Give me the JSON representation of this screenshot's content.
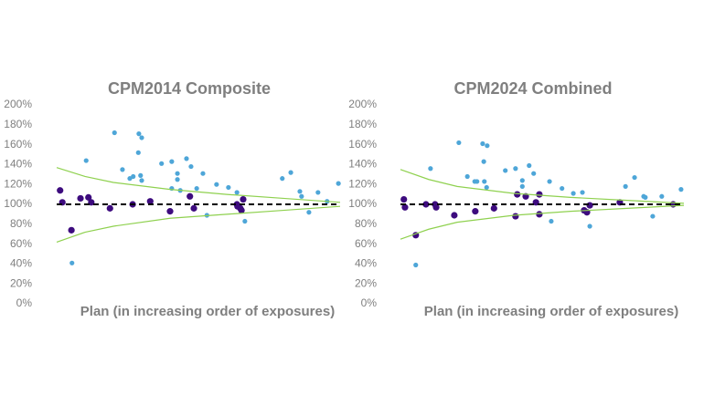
{
  "chart_data": [
    {
      "type": "scatter",
      "title": "CPM2014 Composite",
      "x_label": "Plan (in increasing order of exposures)",
      "xlim": [
        0,
        50
      ],
      "ylim": [
        0,
        200
      ],
      "yticks": [
        {
          "value": 0,
          "label": "0%"
        },
        {
          "value": 20,
          "label": "20%"
        },
        {
          "value": 40,
          "label": "40%"
        },
        {
          "value": 60,
          "label": "60%"
        },
        {
          "value": 80,
          "label": "80%"
        },
        {
          "value": 100,
          "label": "100%"
        },
        {
          "value": 120,
          "label": "120%"
        },
        {
          "value": 140,
          "label": "140%"
        },
        {
          "value": 160,
          "label": "160%"
        },
        {
          "value": 180,
          "label": "180%"
        },
        {
          "value": 200,
          "label": "200%"
        }
      ],
      "series": [
        {
          "kind": "markers",
          "color": "#4ea6d8",
          "marker_size": 2.6,
          "x": [
            2.7,
            5.2,
            10.2,
            11.6,
            12.9,
            13.5,
            14.5,
            14.4,
            15.0,
            14.8,
            15.0,
            18.5,
            20.3,
            20.3,
            21.3,
            21.3,
            21.8,
            22.9,
            23.7,
            24.7,
            25.8,
            26.5,
            28.2,
            30.3,
            31.8,
            33.2,
            39.8,
            41.3,
            42.9,
            43.2,
            44.5,
            46.1,
            47.7,
            49.7
          ],
          "values": [
            41,
            144,
            172,
            135,
            126,
            128,
            171,
            152,
            167,
            129,
            124,
            141,
            143,
            116,
            131,
            125,
            114,
            146,
            138,
            116,
            131,
            89,
            120,
            117,
            112,
            83,
            126,
            132,
            113,
            108,
            92,
            112,
            103,
            121
          ]
        },
        {
          "kind": "markers",
          "color": "#3d0b7e",
          "marker_size": 3.6,
          "x": [
            0.6,
            1.0,
            2.6,
            4.2,
            5.6,
            6.1,
            9.4,
            13.4,
            16.5,
            20.0,
            23.5,
            24.2,
            31.8,
            32.4,
            32.9,
            32.6,
            31.9
          ],
          "values": [
            114,
            102,
            74,
            106,
            107,
            102,
            96,
            100,
            103,
            93,
            108,
            96,
            100,
            96,
            105,
            94,
            98
          ]
        },
        {
          "kind": "line",
          "color": "#8fd14f",
          "x": [
            0,
            5,
            10,
            20,
            30,
            40,
            50
          ],
          "values": [
            137,
            128,
            122,
            115,
            110,
            106,
            102
          ]
        },
        {
          "kind": "line",
          "color": "#8fd14f",
          "x": [
            0,
            5,
            10,
            20,
            30,
            40,
            50
          ],
          "values": [
            62,
            72,
            78,
            86,
            90,
            94,
            98
          ]
        },
        {
          "kind": "line",
          "color": "#000000",
          "dashed": true,
          "x": [
            0,
            50
          ],
          "values": [
            100,
            100
          ]
        }
      ]
    },
    {
      "type": "scatter",
      "title": "CPM2024 Combined",
      "x_label": "Plan (in increasing order of exposures)",
      "xlim": [
        0,
        50
      ],
      "ylim": [
        0,
        200
      ],
      "yticks": [
        {
          "value": 0,
          "label": "0%"
        },
        {
          "value": 20,
          "label": "20%"
        },
        {
          "value": 40,
          "label": "40%"
        },
        {
          "value": 60,
          "label": "60%"
        },
        {
          "value": 80,
          "label": "80%"
        },
        {
          "value": 100,
          "label": "100%"
        },
        {
          "value": 120,
          "label": "120%"
        },
        {
          "value": 140,
          "label": "140%"
        },
        {
          "value": 160,
          "label": "160%"
        },
        {
          "value": 180,
          "label": "180%"
        },
        {
          "value": 200,
          "label": "200%"
        }
      ],
      "series": [
        {
          "kind": "markers",
          "color": "#4ea6d8",
          "marker_size": 2.6,
          "x": [
            2.7,
            5.3,
            10.3,
            11.8,
            13.1,
            13.5,
            14.5,
            15.3,
            14.7,
            14.8,
            15.2,
            18.5,
            20.3,
            21.5,
            21.5,
            22.7,
            23.5,
            26.3,
            26.6,
            28.5,
            30.5,
            32.1,
            33.4,
            39.7,
            41.3,
            42.9,
            43.2,
            44.5,
            46.1,
            49.5
          ],
          "values": [
            39,
            136,
            162,
            128,
            123,
            123,
            161,
            159,
            143,
            123,
            117,
            134,
            136,
            124,
            118,
            139,
            131,
            123,
            83,
            116,
            111,
            112,
            78,
            118,
            127,
            108,
            107,
            88,
            108,
            115
          ]
        },
        {
          "kind": "markers",
          "color": "#3d0b7e",
          "marker_size": 3.6,
          "x": [
            0.6,
            0.8,
            2.7,
            4.5,
            6.1,
            6.3,
            9.5,
            13.2,
            16.5,
            20.3,
            20.6,
            22.1,
            24.5,
            23.9,
            24.5,
            32.4,
            32.9,
            33.4,
            38.7,
            48.1
          ],
          "values": [
            105,
            97,
            69,
            100,
            100,
            97,
            89,
            93,
            96,
            88,
            110,
            108,
            110,
            102,
            90,
            94,
            92,
            99,
            102,
            100
          ]
        },
        {
          "kind": "line",
          "color": "#8fd14f",
          "x": [
            0,
            5,
            10,
            20,
            30,
            40,
            50
          ],
          "values": [
            135,
            125,
            118,
            111,
            107,
            104,
            101
          ]
        },
        {
          "kind": "line",
          "color": "#8fd14f",
          "x": [
            0,
            5,
            10,
            20,
            30,
            40,
            50
          ],
          "values": [
            65,
            75,
            82,
            89,
            93,
            96,
            99
          ]
        },
        {
          "kind": "line",
          "color": "#000000",
          "dashed": true,
          "x": [
            0,
            50
          ],
          "values": [
            100,
            100
          ]
        }
      ]
    }
  ]
}
